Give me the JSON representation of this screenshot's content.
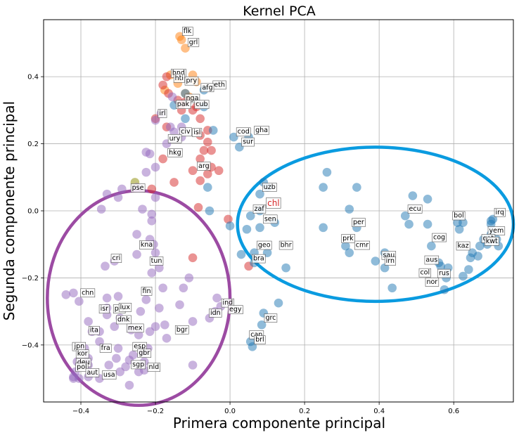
{
  "chart_data": {
    "type": "scatter",
    "title": "Kernel PCA",
    "xlabel": "Primera componente principal",
    "ylabel": "Segunda componente principal",
    "xlim": [
      -0.5,
      0.76
    ],
    "ylim": [
      -0.57,
      0.57
    ],
    "xticks": [
      -0.4,
      -0.2,
      0.0,
      0.2,
      0.4,
      0.6
    ],
    "xtick_labels": [
      "−0.4",
      "−0.2",
      "0.0",
      "0.2",
      "0.4",
      "0.6"
    ],
    "yticks": [
      -0.4,
      -0.2,
      0.0,
      0.2,
      0.4
    ],
    "ytick_labels": [
      "−0.4",
      "−0.2",
      "0.0",
      "0.2",
      "0.4"
    ],
    "grid": true,
    "colors": {
      "blue": "#1f77b4",
      "purple": "#9467bd",
      "red": "#d62728",
      "orange": "#ff7f0e",
      "olive": "#8c8c00",
      "cyan_ellipse": "#0a9be0",
      "purple_ellipse": "#9c4ba3"
    },
    "ellipses": [
      {
        "color": "cyan_ellipse",
        "cx": 0.39,
        "cy": -0.04,
        "rx": 0.37,
        "ry": 0.23
      },
      {
        "color": "purple_ellipse",
        "cx": -0.245,
        "cy": -0.26,
        "rx": 0.245,
        "ry": 0.32
      }
    ],
    "series": [
      {
        "color": "orange",
        "points": [
          [
            -0.135,
            0.52
          ],
          [
            -0.13,
            0.51
          ],
          [
            -0.12,
            0.485
          ],
          [
            -0.1,
            0.405
          ],
          [
            -0.16,
            0.405
          ],
          [
            -0.14,
            0.38
          ],
          [
            -0.175,
            0.36
          ],
          [
            -0.11,
            0.34
          ],
          [
            -0.09,
            0.385
          ],
          [
            -0.12,
            0.35
          ]
        ]
      },
      {
        "color": "red",
        "points": [
          [
            -0.17,
            0.4
          ],
          [
            -0.18,
            0.375
          ],
          [
            -0.165,
            0.35
          ],
          [
            -0.14,
            0.33
          ],
          [
            -0.12,
            0.325
          ],
          [
            -0.09,
            0.31
          ],
          [
            -0.13,
            0.3
          ],
          [
            -0.1,
            0.3
          ],
          [
            -0.08,
            0.275
          ],
          [
            -0.2,
            0.275
          ],
          [
            -0.17,
            0.25
          ],
          [
            -0.06,
            0.24
          ],
          [
            -0.08,
            0.225
          ],
          [
            -0.06,
            0.205
          ],
          [
            -0.05,
            0.18
          ],
          [
            -0.07,
            0.18
          ],
          [
            -0.08,
            0.155
          ],
          [
            -0.18,
            0.155
          ],
          [
            -0.05,
            0.13
          ],
          [
            -0.06,
            0.11
          ],
          [
            -0.1,
            0.12
          ],
          [
            -0.03,
            0.12
          ],
          [
            -0.08,
            0.09
          ],
          [
            -0.15,
            0.085
          ],
          [
            -0.21,
            0.065
          ],
          [
            -0.085,
            0.01
          ],
          [
            -0.005,
            -0.025
          ],
          [
            -0.1,
            -0.14
          ],
          [
            0.05,
            -0.165
          ]
        ]
      },
      {
        "color": "olive",
        "points": [
          [
            -0.255,
            0.085
          ]
        ]
      },
      {
        "color": "blue",
        "points": [
          [
            -0.15,
            0.315
          ],
          [
            -0.12,
            0.35
          ],
          [
            -0.07,
            0.36
          ],
          [
            -0.07,
            0.31
          ],
          [
            -0.12,
            0.275
          ],
          [
            -0.045,
            0.24
          ],
          [
            0.01,
            0.22
          ],
          [
            0.05,
            0.22
          ],
          [
            0.025,
            0.19
          ],
          [
            -0.06,
            0.07
          ],
          [
            -0.055,
            0.0
          ],
          [
            0.09,
            0.085
          ],
          [
            0.08,
            0.05
          ],
          [
            0.1,
            0.07
          ],
          [
            0.08,
            0.0
          ],
          [
            0.055,
            -0.015
          ],
          [
            0.045,
            -0.055
          ],
          [
            0.08,
            -0.05
          ],
          [
            0.12,
            -0.035
          ],
          [
            0.0,
            -0.045
          ],
          [
            0.065,
            -0.125
          ],
          [
            0.03,
            -0.13
          ],
          [
            0.1,
            -0.125
          ],
          [
            0.065,
            -0.155
          ],
          [
            0.15,
            -0.17
          ],
          [
            0.13,
            -0.275
          ],
          [
            0.09,
            -0.305
          ],
          [
            0.085,
            -0.34
          ],
          [
            0.055,
            -0.39
          ],
          [
            0.06,
            -0.405
          ],
          [
            0.26,
            0.115
          ],
          [
            0.25,
            0.07
          ],
          [
            0.34,
            0.07
          ],
          [
            0.25,
            -0.05
          ],
          [
            0.32,
            0.005
          ],
          [
            0.31,
            -0.105
          ],
          [
            0.32,
            -0.125
          ],
          [
            0.34,
            -0.05
          ],
          [
            0.39,
            -0.15
          ],
          [
            0.415,
            -0.125
          ],
          [
            0.415,
            -0.17
          ],
          [
            0.435,
            -0.23
          ],
          [
            0.47,
            -0.015
          ],
          [
            0.48,
            -0.04
          ],
          [
            0.49,
            0.045
          ],
          [
            0.53,
            0.035
          ],
          [
            0.53,
            -0.04
          ],
          [
            0.54,
            -0.105
          ],
          [
            0.56,
            -0.155
          ],
          [
            0.585,
            -0.17
          ],
          [
            0.58,
            -0.2
          ],
          [
            0.575,
            -0.235
          ],
          [
            0.615,
            -0.055
          ],
          [
            0.61,
            -0.035
          ],
          [
            0.625,
            -0.035
          ],
          [
            0.65,
            -0.125
          ],
          [
            0.67,
            -0.105
          ],
          [
            0.64,
            -0.175
          ],
          [
            0.645,
            -0.14
          ],
          [
            0.665,
            -0.135
          ],
          [
            0.68,
            -0.085
          ],
          [
            0.7,
            -0.07
          ],
          [
            0.715,
            -0.085
          ],
          [
            0.72,
            -0.105
          ],
          [
            0.7,
            -0.03
          ],
          [
            0.705,
            -0.025
          ],
          [
            0.7,
            -0.04
          ],
          [
            0.69,
            -0.1
          ],
          [
            0.625,
            -0.195
          ],
          [
            0.565,
            -0.165
          ]
        ]
      },
      {
        "color": "purple",
        "points": [
          [
            -0.155,
            0.34
          ],
          [
            -0.185,
            0.29
          ],
          [
            -0.2,
            0.27
          ],
          [
            -0.225,
            0.175
          ],
          [
            -0.215,
            0.17
          ],
          [
            -0.17,
            0.2
          ],
          [
            -0.15,
            0.235
          ],
          [
            -0.16,
            0.25
          ],
          [
            -0.13,
            0.22
          ],
          [
            -0.13,
            0.25
          ],
          [
            -0.2,
            0.13
          ],
          [
            -0.225,
            0.115
          ],
          [
            -0.25,
            0.07
          ],
          [
            -0.29,
            0.065
          ],
          [
            -0.33,
            0.05
          ],
          [
            -0.3,
            0.04
          ],
          [
            -0.2,
            0.04
          ],
          [
            -0.235,
            0.005
          ],
          [
            -0.345,
            0.005
          ],
          [
            -0.21,
            -0.01
          ],
          [
            -0.21,
            -0.03
          ],
          [
            -0.25,
            -0.07
          ],
          [
            -0.215,
            -0.085
          ],
          [
            -0.205,
            -0.1
          ],
          [
            -0.2,
            -0.125
          ],
          [
            -0.25,
            -0.13
          ],
          [
            -0.31,
            -0.15
          ],
          [
            -0.19,
            -0.17
          ],
          [
            -0.335,
            -0.165
          ],
          [
            -0.21,
            -0.185
          ],
          [
            -0.18,
            -0.23
          ],
          [
            -0.225,
            -0.265
          ],
          [
            -0.33,
            -0.26
          ],
          [
            -0.3,
            -0.255
          ],
          [
            -0.19,
            -0.29
          ],
          [
            -0.175,
            -0.34
          ],
          [
            -0.33,
            -0.31
          ],
          [
            -0.31,
            -0.345
          ],
          [
            -0.42,
            -0.245
          ],
          [
            -0.405,
            -0.27
          ],
          [
            -0.44,
            -0.25
          ],
          [
            -0.35,
            -0.36
          ],
          [
            -0.35,
            -0.39
          ],
          [
            -0.38,
            -0.33
          ],
          [
            -0.39,
            -0.41
          ],
          [
            -0.38,
            -0.44
          ],
          [
            -0.41,
            -0.45
          ],
          [
            -0.415,
            -0.48
          ],
          [
            -0.42,
            -0.495
          ],
          [
            -0.405,
            -0.5
          ],
          [
            -0.38,
            -0.495
          ],
          [
            -0.35,
            -0.5
          ],
          [
            -0.325,
            -0.46
          ],
          [
            -0.3,
            -0.41
          ],
          [
            -0.305,
            -0.44
          ],
          [
            -0.28,
            -0.465
          ],
          [
            -0.27,
            -0.445
          ],
          [
            -0.23,
            -0.45
          ],
          [
            -0.23,
            -0.475
          ],
          [
            -0.26,
            -0.43
          ],
          [
            -0.245,
            -0.48
          ],
          [
            -0.235,
            -0.42
          ],
          [
            -0.22,
            -0.41
          ],
          [
            -0.17,
            -0.38
          ],
          [
            -0.245,
            -0.37
          ],
          [
            -0.2,
            -0.345
          ],
          [
            -0.215,
            -0.36
          ],
          [
            -0.265,
            -0.355
          ],
          [
            -0.295,
            -0.32
          ],
          [
            -0.24,
            -0.3
          ],
          [
            -0.135,
            -0.28
          ],
          [
            -0.125,
            -0.23
          ],
          [
            -0.1,
            -0.46
          ],
          [
            -0.1,
            -0.33
          ],
          [
            -0.055,
            -0.32
          ],
          [
            -0.04,
            -0.3
          ],
          [
            -0.035,
            -0.26
          ],
          [
            -0.025,
            -0.285
          ],
          [
            -0.11,
            -0.2
          ],
          [
            -0.295,
            -0.48
          ],
          [
            -0.42,
            -0.5
          ],
          [
            -0.37,
            -0.36
          ],
          [
            -0.27,
            -0.52
          ],
          [
            -0.38,
            -0.46
          ],
          [
            -0.33,
            -0.29
          ]
        ]
      }
    ],
    "labels": [
      {
        "t": "flk",
        "x": -0.125,
        "y": 0.53
      },
      {
        "t": "grl",
        "x": -0.11,
        "y": 0.497
      },
      {
        "t": "hnd",
        "x": -0.155,
        "y": 0.405
      },
      {
        "t": "hti",
        "x": -0.148,
        "y": 0.39
      },
      {
        "t": "pry",
        "x": -0.118,
        "y": 0.382
      },
      {
        "t": "eth",
        "x": -0.043,
        "y": 0.37
      },
      {
        "t": "afg",
        "x": -0.075,
        "y": 0.362
      },
      {
        "t": "nga",
        "x": -0.118,
        "y": 0.33
      },
      {
        "t": "pak",
        "x": -0.142,
        "y": 0.312
      },
      {
        "t": "cub",
        "x": -0.092,
        "y": 0.312
      },
      {
        "t": "irl",
        "x": -0.19,
        "y": 0.285
      },
      {
        "t": "civ",
        "x": -0.132,
        "y": 0.23
      },
      {
        "t": "isl",
        "x": -0.098,
        "y": 0.228
      },
      {
        "t": "cod",
        "x": 0.02,
        "y": 0.23
      },
      {
        "t": "gha",
        "x": 0.068,
        "y": 0.235
      },
      {
        "t": "ury",
        "x": -0.163,
        "y": 0.21
      },
      {
        "t": "sur",
        "x": 0.034,
        "y": 0.2
      },
      {
        "t": "hkg",
        "x": -0.164,
        "y": 0.168
      },
      {
        "t": "arg",
        "x": -0.085,
        "y": 0.128
      },
      {
        "t": "pse",
        "x": -0.263,
        "y": 0.063
      },
      {
        "t": "uzb",
        "x": 0.09,
        "y": 0.065
      },
      {
        "t": "zaf",
        "x": 0.065,
        "y": 0.0
      },
      {
        "t": "sen",
        "x": 0.092,
        "y": -0.03
      },
      {
        "t": "per",
        "x": 0.33,
        "y": -0.04
      },
      {
        "t": "ecu",
        "x": 0.48,
        "y": 0.0
      },
      {
        "t": "bol",
        "x": 0.6,
        "y": -0.02
      },
      {
        "t": "irq",
        "x": 0.712,
        "y": -0.01
      },
      {
        "t": "yem",
        "x": 0.695,
        "y": -0.065
      },
      {
        "t": "qat",
        "x": 0.678,
        "y": -0.088
      },
      {
        "t": "kwt",
        "x": 0.686,
        "y": -0.096
      },
      {
        "t": "cog",
        "x": 0.545,
        "y": -0.085
      },
      {
        "t": "kaz",
        "x": 0.61,
        "y": -0.11
      },
      {
        "t": "prk",
        "x": 0.302,
        "y": -0.088
      },
      {
        "t": "cmr",
        "x": 0.337,
        "y": -0.108
      },
      {
        "t": "geo",
        "x": 0.075,
        "y": -0.108
      },
      {
        "t": "bhr",
        "x": 0.135,
        "y": -0.108
      },
      {
        "t": "bra",
        "x": 0.062,
        "y": -0.148
      },
      {
        "t": "sau",
        "x": 0.41,
        "y": -0.138
      },
      {
        "t": "irn",
        "x": 0.418,
        "y": -0.155
      },
      {
        "t": "aus",
        "x": 0.525,
        "y": -0.152
      },
      {
        "t": "col",
        "x": 0.51,
        "y": -0.19
      },
      {
        "t": "rus",
        "x": 0.56,
        "y": -0.192
      },
      {
        "t": "nor",
        "x": 0.527,
        "y": -0.218
      },
      {
        "t": "kna",
        "x": -0.24,
        "y": -0.107
      },
      {
        "t": "cri",
        "x": -0.316,
        "y": -0.147
      },
      {
        "t": "tun",
        "x": -0.212,
        "y": -0.155
      },
      {
        "t": "fin",
        "x": -0.235,
        "y": -0.245
      },
      {
        "t": "chn",
        "x": -0.398,
        "y": -0.25
      },
      {
        "t": "isr",
        "x": -0.348,
        "y": -0.298
      },
      {
        "t": "prt",
        "x": -0.31,
        "y": -0.298
      },
      {
        "t": "lux",
        "x": -0.295,
        "y": -0.293
      },
      {
        "t": "dnk",
        "x": -0.302,
        "y": -0.33
      },
      {
        "t": "mex",
        "x": -0.274,
        "y": -0.355
      },
      {
        "t": "bgr",
        "x": -0.144,
        "y": -0.36
      },
      {
        "t": "ita",
        "x": -0.376,
        "y": -0.362
      },
      {
        "t": "jpn",
        "x": -0.418,
        "y": -0.41
      },
      {
        "t": "fra",
        "x": -0.346,
        "y": -0.415
      },
      {
        "t": "esp",
        "x": -0.258,
        "y": -0.41
      },
      {
        "t": "gbr",
        "x": -0.245,
        "y": -0.43
      },
      {
        "t": "kor",
        "x": -0.41,
        "y": -0.432
      },
      {
        "t": "deu",
        "x": -0.41,
        "y": -0.458
      },
      {
        "t": "sgp",
        "x": -0.262,
        "y": -0.464
      },
      {
        "t": "nld",
        "x": -0.218,
        "y": -0.472
      },
      {
        "t": "pol",
        "x": -0.411,
        "y": -0.472
      },
      {
        "t": "aut",
        "x": -0.384,
        "y": -0.488
      },
      {
        "t": "usa",
        "x": -0.34,
        "y": -0.495
      },
      {
        "t": "ind",
        "x": -0.02,
        "y": -0.28
      },
      {
        "t": "egy",
        "x": -0.002,
        "y": -0.3
      },
      {
        "t": "idn",
        "x": -0.053,
        "y": -0.31
      },
      {
        "t": "grc",
        "x": 0.095,
        "y": -0.325
      },
      {
        "t": "can",
        "x": 0.055,
        "y": -0.375
      },
      {
        "t": "brl",
        "x": 0.068,
        "y": -0.39
      }
    ],
    "highlight_label": {
      "t": "chl",
      "x": 0.1,
      "y": 0.015
    }
  }
}
